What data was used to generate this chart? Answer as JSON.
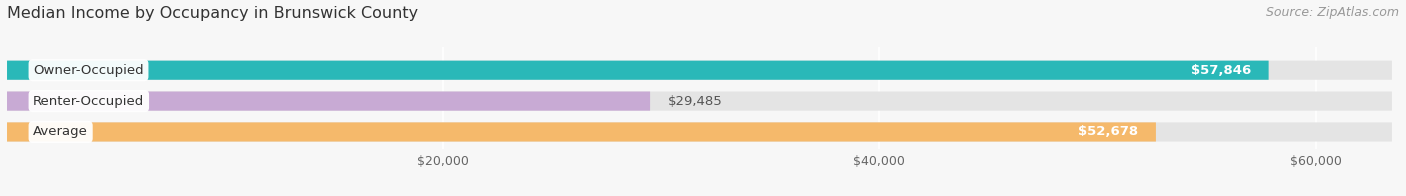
{
  "title": "Median Income by Occupancy in Brunswick County",
  "source": "Source: ZipAtlas.com",
  "categories": [
    "Owner-Occupied",
    "Renter-Occupied",
    "Average"
  ],
  "values": [
    57846,
    29485,
    52678
  ],
  "bar_colors": [
    "#2ab8b8",
    "#c8aad4",
    "#f5b96b"
  ],
  "label_texts": [
    "$57,846",
    "$29,485",
    "$52,678"
  ],
  "x_ticks": [
    0,
    20000,
    40000,
    60000
  ],
  "x_tick_labels": [
    "",
    "$20,000",
    "$40,000",
    "$60,000"
  ],
  "xlim_max": 63500,
  "bar_height": 0.018,
  "bar_gap": 0.012,
  "background_color": "#f7f7f7",
  "track_color": "#e4e4e4",
  "title_fontsize": 11.5,
  "source_fontsize": 9,
  "label_fontsize": 9.5,
  "category_fontsize": 9.5,
  "grid_color": "#ffffff"
}
